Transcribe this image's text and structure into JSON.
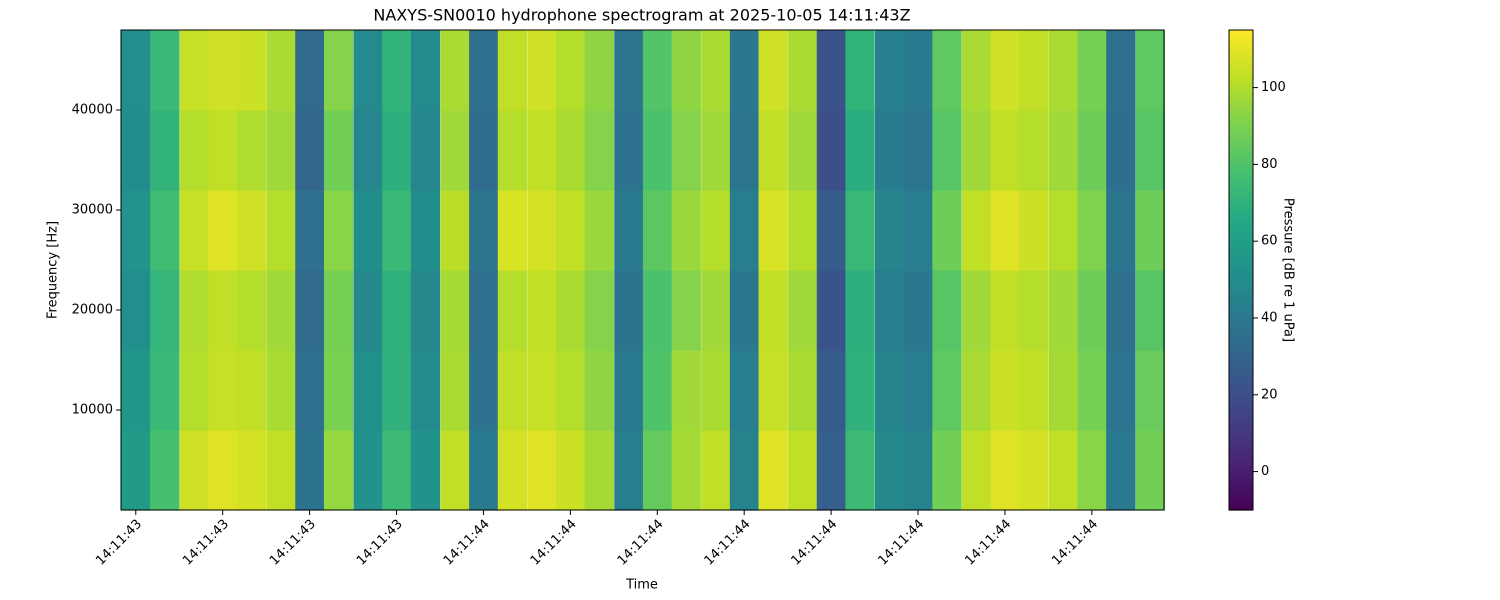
{
  "chart_data": {
    "type": "heatmap",
    "title": "NAXYS-SN0010 hydrophone spectrogram at 2025-10-05 14:11:43Z",
    "xlabel": "Time",
    "ylabel": "Frequency [Hz]",
    "colorbar_label": "Pressure [dB re 1 uPa]",
    "colormap": "viridis",
    "x": [
      43.6,
      43.633,
      43.667,
      43.7,
      43.733,
      43.767,
      43.8,
      43.833,
      43.867,
      43.9,
      43.933,
      43.967,
      44.0,
      44.033,
      44.067,
      44.1,
      44.133,
      44.167,
      44.2,
      44.233,
      44.267,
      44.3,
      44.333,
      44.367,
      44.4,
      44.433,
      44.467,
      44.5,
      44.533,
      44.567,
      44.6,
      44.633,
      44.667,
      44.7,
      44.733,
      44.767
    ],
    "y": [
      4000,
      12000,
      20000,
      28000,
      36000,
      44000
    ],
    "values": [
      [
        58,
        78,
        106,
        109,
        107,
        103,
        38,
        95,
        53,
        75,
        53,
        103,
        41,
        107,
        109,
        105,
        98,
        43,
        85,
        98,
        103,
        45,
        109,
        103,
        28,
        75,
        48,
        45,
        88,
        103,
        109,
        107,
        103,
        93,
        41,
        88
      ],
      [
        56,
        74,
        101,
        104,
        103,
        99,
        36,
        90,
        52,
        70,
        49,
        99,
        37,
        103,
        104,
        101,
        94,
        41,
        80,
        97,
        99,
        43,
        104,
        99,
        26,
        70,
        46,
        43,
        84,
        99,
        105,
        103,
        98,
        89,
        39,
        86
      ],
      [
        52,
        72,
        100,
        103,
        101,
        97,
        33,
        89,
        48,
        70,
        48,
        98,
        36,
        101,
        103,
        99,
        92,
        38,
        79,
        92,
        97,
        40,
        103,
        97,
        22,
        69,
        43,
        40,
        82,
        97,
        103,
        101,
        97,
        87,
        36,
        82
      ],
      [
        54,
        76,
        104,
        109,
        106,
        101,
        36,
        93,
        51,
        74,
        51,
        102,
        39,
        108,
        107,
        103,
        96,
        41,
        83,
        96,
        101,
        43,
        108,
        101,
        26,
        73,
        46,
        43,
        87,
        103,
        109,
        105,
        101,
        91,
        39,
        87
      ],
      [
        50,
        71,
        101,
        103,
        100,
        97,
        31,
        88,
        47,
        69,
        47,
        97,
        34,
        101,
        103,
        99,
        92,
        37,
        79,
        92,
        97,
        39,
        103,
        97,
        20,
        68,
        42,
        39,
        82,
        97,
        103,
        101,
        97,
        87,
        35,
        82
      ],
      [
        52,
        74,
        104,
        106,
        105,
        99,
        33,
        92,
        49,
        71,
        49,
        99,
        36,
        103,
        106,
        101,
        94,
        39,
        81,
        94,
        99,
        40,
        106,
        99,
        22,
        71,
        44,
        41,
        84,
        99,
        106,
        103,
        99,
        89,
        36,
        84
      ]
    ],
    "xlim": [
      43.583,
      44.783
    ],
    "ylim": [
      0,
      48000
    ],
    "clim": [
      -10,
      115
    ],
    "xticks": [
      {
        "value": 43.6,
        "label": "14:11:43"
      },
      {
        "value": 43.7,
        "label": "14:11:43"
      },
      {
        "value": 43.8,
        "label": "14:11:43"
      },
      {
        "value": 43.9,
        "label": "14:11:43"
      },
      {
        "value": 44.0,
        "label": "14:11:44"
      },
      {
        "value": 44.1,
        "label": "14:11:44"
      },
      {
        "value": 44.2,
        "label": "14:11:44"
      },
      {
        "value": 44.3,
        "label": "14:11:44"
      },
      {
        "value": 44.4,
        "label": "14:11:44"
      },
      {
        "value": 44.5,
        "label": "14:11:44"
      },
      {
        "value": 44.6,
        "label": "14:11:44"
      },
      {
        "value": 44.7,
        "label": "14:11:44"
      }
    ],
    "yticks": [
      10000,
      20000,
      30000,
      40000
    ],
    "cticks": [
      0,
      20,
      40,
      60,
      80,
      100
    ]
  }
}
